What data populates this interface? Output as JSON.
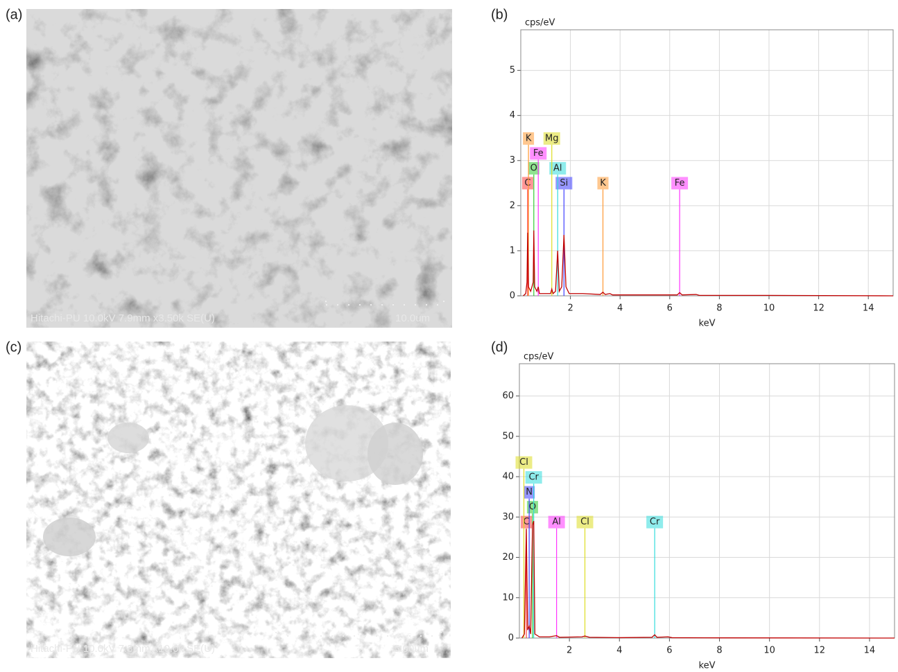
{
  "panel_labels": [
    "(a)",
    "(b)",
    "(c)",
    "(d)"
  ],
  "sem_images": [
    {
      "caption": "Hitachi-PU 10.0kV 7.9mm x3.50k SE(U)",
      "scale_bar": "10.0um"
    },
    {
      "caption": "Hitachi-PU 10.0kV 7.3mm x10.0k SE(U)",
      "scale_bar": "5.00um"
    }
  ],
  "chart_data": [
    {
      "type": "line",
      "y_label": "cps/eV",
      "x_label": "keV",
      "color": "#c00000",
      "x": [
        0.1,
        0.2,
        0.25,
        0.277,
        0.31,
        0.4,
        0.5,
        0.525,
        0.56,
        0.65,
        0.705,
        0.75,
        0.9,
        1.2,
        1.25,
        1.3,
        1.4,
        1.487,
        1.55,
        1.65,
        1.74,
        1.82,
        1.95,
        2.5,
        3.2,
        3.31,
        3.4,
        3.59,
        3.7,
        5,
        6.3,
        6.4,
        6.5,
        7.06,
        7.2,
        10,
        15
      ],
      "values": [
        0,
        0.05,
        0.3,
        1.4,
        0.2,
        0.1,
        0.3,
        1.45,
        0.2,
        0.1,
        0.2,
        0.05,
        0.05,
        0.05,
        0.15,
        0.05,
        0.1,
        1.0,
        0.1,
        0.2,
        1.35,
        0.2,
        0.05,
        0.05,
        0.03,
        0.08,
        0.03,
        0.05,
        0.02,
        0.02,
        0.02,
        0.07,
        0.02,
        0.03,
        0.01,
        0.01,
        0
      ],
      "xlim": [
        0,
        15
      ],
      "ylim": [
        0,
        5.9
      ],
      "xticks": [
        2,
        4,
        6,
        8,
        10,
        12,
        14
      ],
      "yticks": [
        0,
        1,
        2,
        3,
        4,
        5
      ],
      "grid": true,
      "peaks": [
        {
          "label": "C",
          "x": 0.277,
          "color": "#ff4040"
        },
        {
          "label": "Si",
          "x": 1.74,
          "color": "#4040ff"
        },
        {
          "label": "K",
          "x": 3.31,
          "color": "#ff9933"
        },
        {
          "label": "Fe",
          "x": 6.4,
          "color": "#ff33ff"
        },
        {
          "label": "O",
          "x": 0.525,
          "color": "#33cc33"
        },
        {
          "label": "Al",
          "x": 1.487,
          "color": "#33dddd"
        },
        {
          "label": "Fe",
          "x": 0.705,
          "color": "#ff33ff"
        },
        {
          "label": "K",
          "x": 0.31,
          "color": "#ff9933"
        },
        {
          "label": "Mg",
          "x": 1.25,
          "color": "#dddd22"
        }
      ]
    },
    {
      "type": "line",
      "y_label": "cps/eV",
      "x_label": "keV",
      "color": "#c00000",
      "x": [
        0.1,
        0.2,
        0.277,
        0.33,
        0.392,
        0.45,
        0.525,
        0.573,
        0.62,
        0.8,
        1.2,
        1.487,
        1.6,
        2.5,
        2.62,
        2.8,
        4,
        5.3,
        5.41,
        5.5,
        5.95,
        6.1,
        8,
        15
      ],
      "values": [
        0,
        1,
        27,
        2,
        3,
        1,
        28,
        29,
        1,
        0.3,
        0.3,
        0.6,
        0.2,
        0.3,
        0.5,
        0.2,
        0.1,
        0.2,
        0.8,
        0.2,
        0.3,
        0.1,
        0.05,
        0
      ],
      "xlim": [
        0,
        15
      ],
      "ylim": [
        0,
        68
      ],
      "xticks": [
        2,
        4,
        6,
        8,
        10,
        12,
        14
      ],
      "yticks": [
        0,
        10,
        20,
        30,
        40,
        50,
        60
      ],
      "grid": true,
      "peaks": [
        {
          "label": "C",
          "x": 0.277,
          "color": "#ff4040"
        },
        {
          "label": "Al",
          "x": 1.487,
          "color": "#ff33ff"
        },
        {
          "label": "Cl",
          "x": 2.62,
          "color": "#dddd22"
        },
        {
          "label": "Cr",
          "x": 5.41,
          "color": "#33dddd"
        },
        {
          "label": "O",
          "x": 0.525,
          "color": "#33cc33"
        },
        {
          "label": "N",
          "x": 0.392,
          "color": "#4040ff"
        },
        {
          "label": "Cr",
          "x": 0.573,
          "color": "#33dddd"
        },
        {
          "label": "Cl",
          "x": 0.18,
          "color": "#dddd22"
        }
      ]
    }
  ]
}
